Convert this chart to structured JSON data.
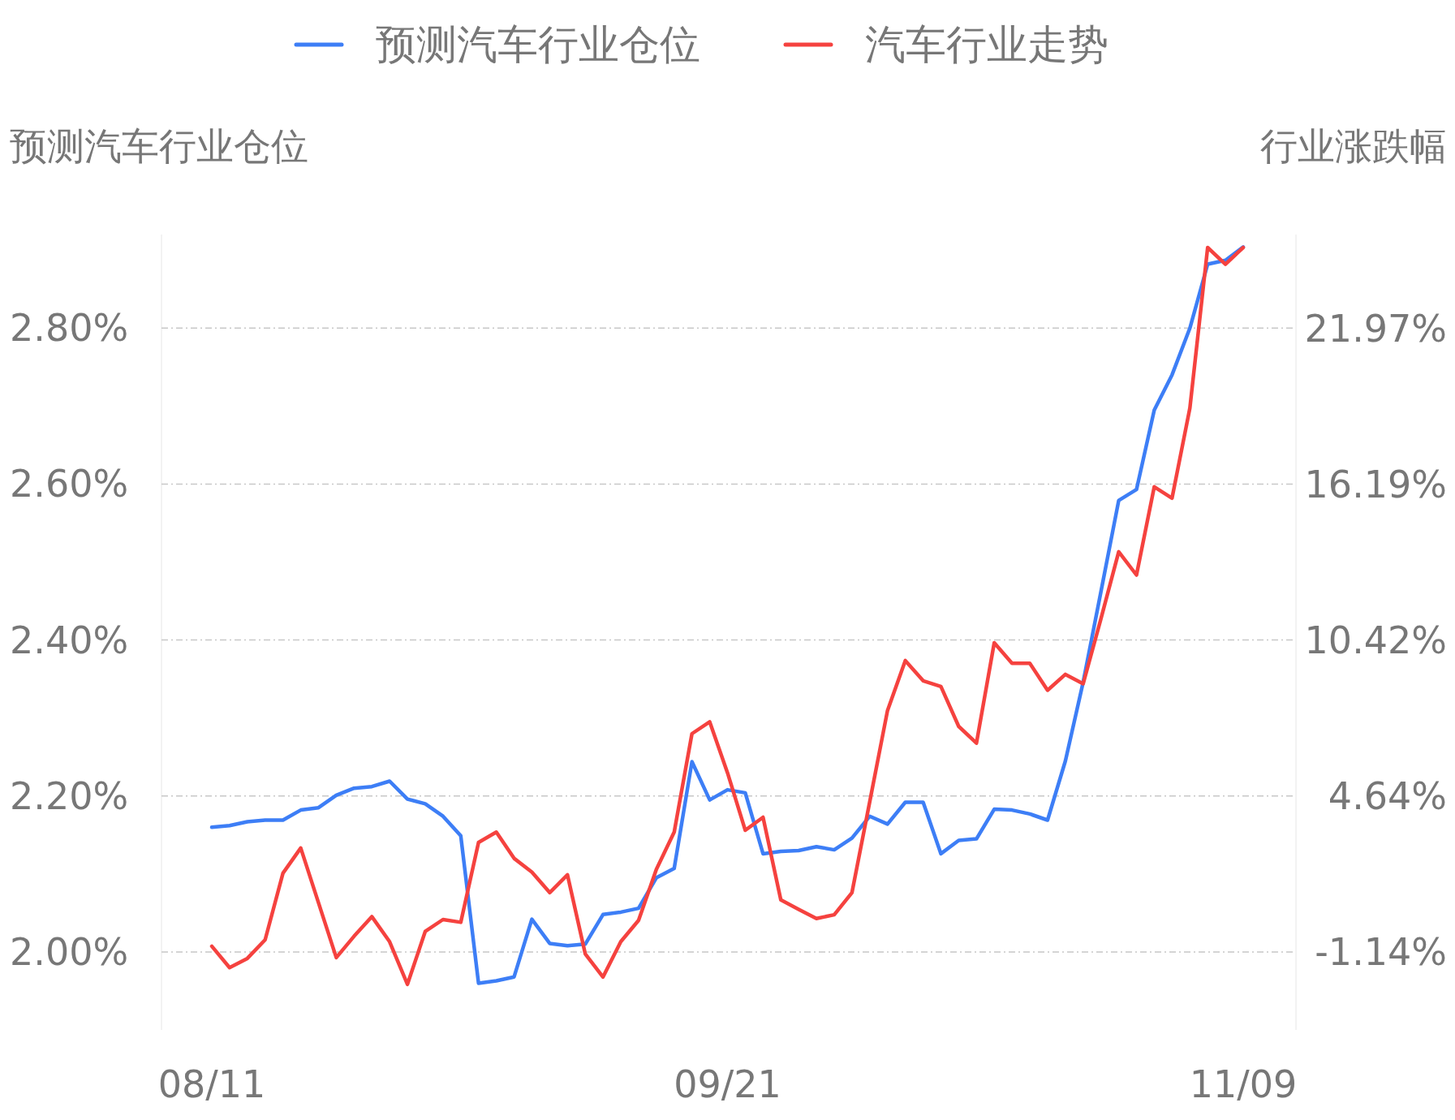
{
  "chart_data": {
    "type": "line",
    "categories": [
      "08/11",
      null,
      null,
      null,
      null,
      null,
      null,
      null,
      null,
      null,
      null,
      null,
      null,
      null,
      null,
      null,
      null,
      null,
      null,
      null,
      null,
      null,
      null,
      null,
      null,
      null,
      null,
      null,
      null,
      "09/21",
      null,
      null,
      null,
      null,
      null,
      null,
      null,
      null,
      null,
      null,
      null,
      null,
      null,
      null,
      null,
      null,
      null,
      null,
      null,
      null,
      null,
      null,
      null,
      null,
      null,
      null,
      null,
      null,
      "11/09"
    ],
    "series": [
      {
        "name": "预测汽车行业仓位",
        "color": "#3d7ef6",
        "values": [
          2.16,
          2.162,
          2.167,
          2.169,
          2.169,
          2.182,
          2.185,
          2.201,
          2.21,
          2.212,
          2.219,
          2.196,
          2.19,
          2.174,
          2.149,
          1.96,
          1.963,
          1.968,
          2.042,
          2.011,
          2.008,
          2.01,
          2.048,
          2.051,
          2.056,
          2.095,
          2.107,
          2.244,
          2.195,
          2.208,
          2.204,
          2.126,
          2.129,
          2.13,
          2.135,
          2.131,
          2.146,
          2.174,
          2.164,
          2.192,
          2.192,
          2.126,
          2.143,
          2.145,
          2.183,
          2.182,
          2.177,
          2.169,
          2.245,
          2.346,
          2.462,
          2.579,
          2.593,
          2.695,
          2.74,
          2.8,
          2.882,
          2.887,
          2.904
        ]
      },
      {
        "name": "汽车行业走势",
        "color": "#f5423f",
        "axis": "y2",
        "values": [
          -0.93,
          -1.72,
          -1.38,
          -0.69,
          1.78,
          2.71,
          0.68,
          -1.35,
          -0.56,
          0.17,
          -0.76,
          -2.34,
          -0.38,
          0.06,
          -0.04,
          2.92,
          3.3,
          2.33,
          1.82,
          1.06,
          1.72,
          -1.21,
          -2.07,
          -0.76,
          0.03,
          1.92,
          3.3,
          6.95,
          7.39,
          5.5,
          3.37,
          3.85,
          0.79,
          0.44,
          0.1,
          0.24,
          1.06,
          4.43,
          7.81,
          9.66,
          8.91,
          8.7,
          7.22,
          6.6,
          10.32,
          9.56,
          9.56,
          8.56,
          9.15,
          8.8,
          11.21,
          13.69,
          12.83,
          16.1,
          15.68,
          19.02,
          24.97,
          24.35,
          24.97
        ]
      }
    ],
    "ylabel": "预测汽车行业仓位",
    "y2label": "行业涨跌幅",
    "ylim": [
      1.9,
      2.92
    ],
    "y2lim": [
      -4.03,
      25.45
    ],
    "yticks": [
      {
        "value": 2.0,
        "label": "2.00%"
      },
      {
        "value": 2.2,
        "label": "2.20%"
      },
      {
        "value": 2.4,
        "label": "2.40%"
      },
      {
        "value": 2.6,
        "label": "2.60%"
      },
      {
        "value": 2.8,
        "label": "2.80%"
      }
    ],
    "y2ticks": [
      {
        "value": -1.14,
        "label": "-1.14%"
      },
      {
        "value": 4.64,
        "label": "4.64%"
      },
      {
        "value": 10.42,
        "label": "10.42%"
      },
      {
        "value": 16.19,
        "label": "16.19%"
      },
      {
        "value": 21.97,
        "label": "21.97%"
      }
    ],
    "grid": "y",
    "legend": "top"
  }
}
